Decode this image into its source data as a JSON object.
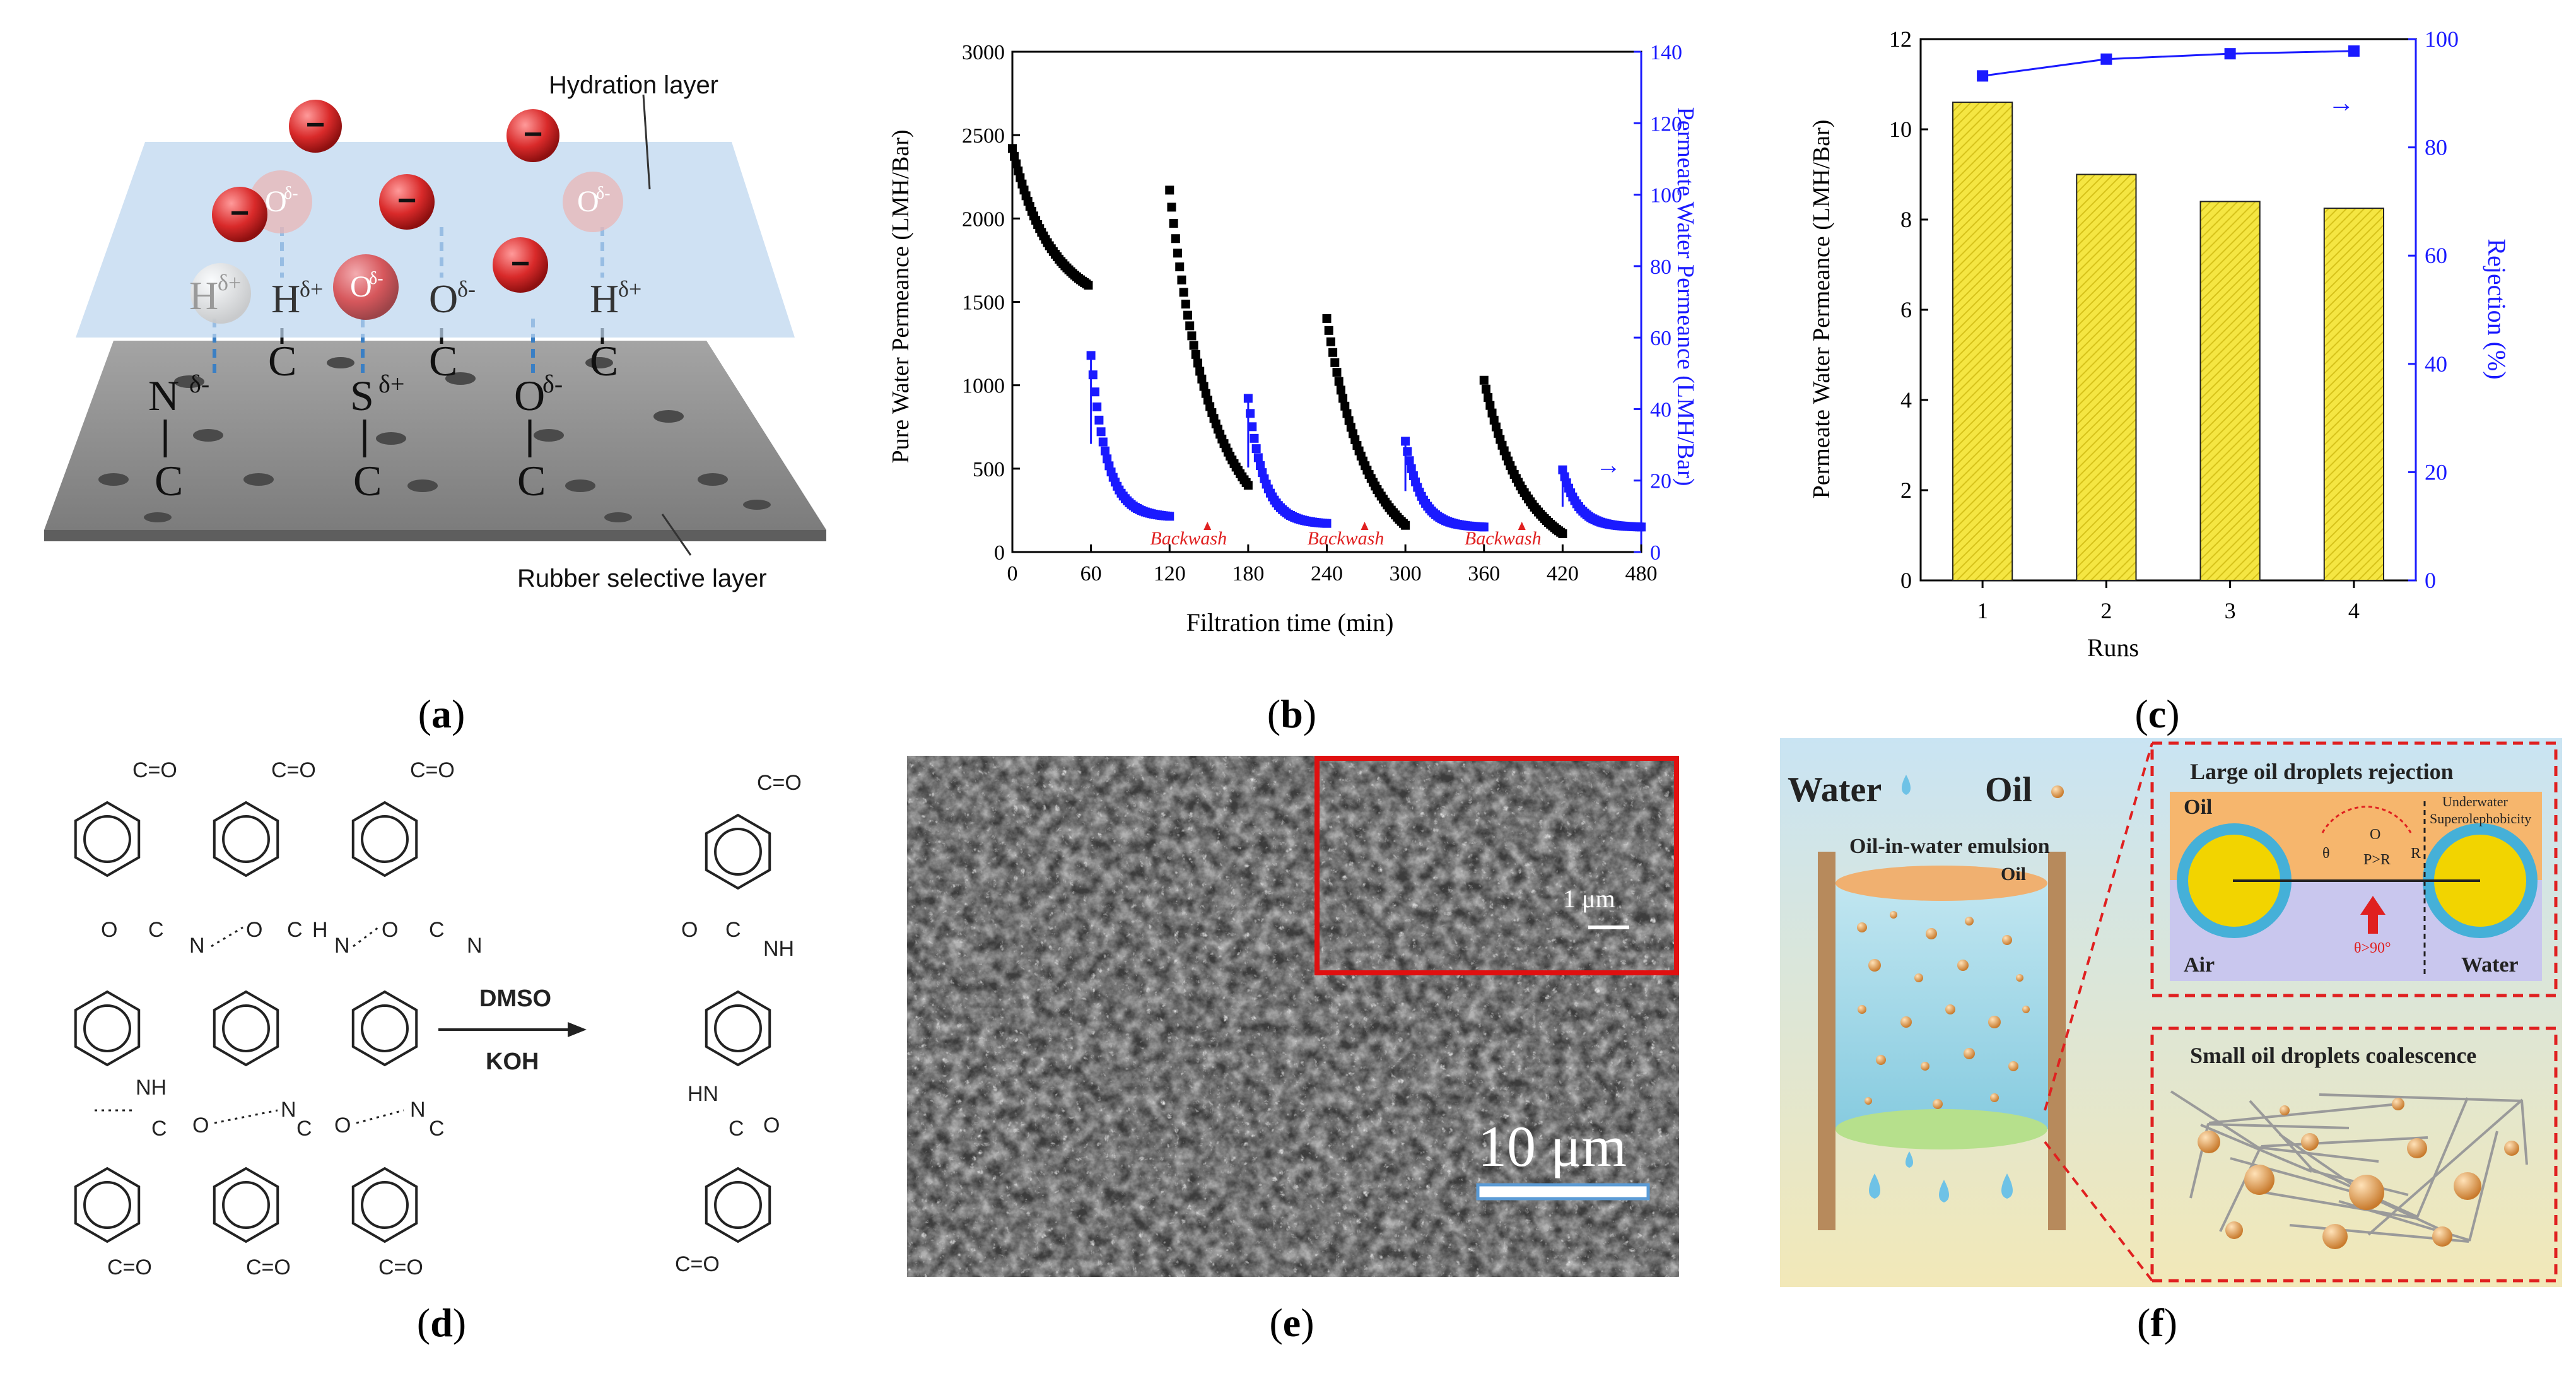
{
  "panel_a": {
    "hydration_label": "Hydration layer",
    "rubber_label": "Rubber selective layer",
    "charge_symbol": "−",
    "atoms": {
      "n": "N",
      "n_charge": "δ-",
      "s": "S",
      "s_charge": "δ+",
      "o": "O",
      "o_charge": "δ-",
      "c": "C",
      "h": "H",
      "h_charge": "δ+",
      "o_top": "O",
      "o_top_charge": "δ-",
      "odelta": "δ-",
      "hdelta": "δ+"
    }
  },
  "panel_d": {
    "reagent1": "DMSO",
    "reagent2": "KOH",
    "co": "C=O",
    "nh": "NH",
    "hn": "HN",
    "n": "N",
    "h": "H",
    "c": "C",
    "o": "O"
  },
  "panel_e": {
    "scale_main": "10 μm",
    "scale_inset": "1 μm"
  },
  "panel_f": {
    "water_label": "Water",
    "oil_label": "Oil",
    "emulsion_label": "Oil-in-water emulsion",
    "oil_top_label": "Oil",
    "box1_title": "Large oil droplets rejection",
    "box1_oil": "Oil",
    "box1_underwater": "Underwater",
    "box1_super": "Superolephobicity",
    "box1_air": "Air",
    "box1_water": "Water",
    "box1_theta": "θ>90°",
    "box1_o": "O",
    "box1_p": "P>R",
    "box1_r": "R",
    "box1_b": "θ",
    "box2_title": "Small oil droplets coalescence"
  },
  "captions": {
    "a": "a",
    "b": "b",
    "c": "c",
    "d": "d",
    "e": "e",
    "f": "f"
  },
  "colors": {
    "blue": "#1a1aff",
    "black": "#000000",
    "yellow": "#f5e642",
    "red": "#e02020"
  },
  "chart_data": [
    {
      "type": "scatter",
      "panel": "b",
      "xlabel": "Filtration time (min)",
      "ylabel": "Pure Water Permeance (LMH/Bar)",
      "y2label": "Permeate Water Permeance (LMH/Bar)",
      "xlim": [
        0,
        480
      ],
      "ylim": [
        0,
        3000
      ],
      "y2lim": [
        0,
        140
      ],
      "xticks": [
        "0",
        "60",
        "120",
        "180",
        "240",
        "300",
        "360",
        "420",
        "480"
      ],
      "yticks": [
        "0",
        "500",
        "1000",
        "1500",
        "2000",
        "2500",
        "3000"
      ],
      "y2ticks": [
        "0",
        "20",
        "40",
        "60",
        "80",
        "100",
        "120",
        "140"
      ],
      "annotations": [
        "Backwash",
        "Backwash",
        "Backwash"
      ],
      "annotation_x": [
        120,
        240,
        360
      ],
      "arrow_marker": "→",
      "series": [
        {
          "name": "Pure water permeance",
          "axis": "left",
          "color": "#000000",
          "segments": [
            {
              "t0": 0,
              "t1": 58,
              "start": 2420,
              "end": 1600
            },
            {
              "t0": 120,
              "t1": 180,
              "start": 2170,
              "end": 400
            },
            {
              "t0": 240,
              "t1": 300,
              "start": 1400,
              "end": 160
            },
            {
              "t0": 360,
              "t1": 420,
              "start": 1030,
              "end": 110
            }
          ]
        },
        {
          "name": "Permeate water permeance",
          "axis": "right",
          "color": "#1a1aff",
          "segments": [
            {
              "t0": 60,
              "t1": 120,
              "start": 55,
              "end": 10
            },
            {
              "t0": 180,
              "t1": 240,
              "start": 43,
              "end": 8
            },
            {
              "t0": 300,
              "t1": 360,
              "start": 31,
              "end": 7
            },
            {
              "t0": 420,
              "t1": 480,
              "start": 23,
              "end": 7
            }
          ]
        }
      ]
    },
    {
      "type": "bar",
      "panel": "c",
      "xlabel": "Runs",
      "ylabel": "Permeate Water Permeance (LMH/Bar)",
      "y2label": "Rejection (%)",
      "categories": [
        "1",
        "2",
        "3",
        "4"
      ],
      "values": [
        10.6,
        9.0,
        8.4,
        8.25
      ],
      "ylim": [
        0,
        12
      ],
      "y2lim": [
        0,
        100
      ],
      "yticks": [
        "0",
        "2",
        "4",
        "6",
        "8",
        "10",
        "12"
      ],
      "y2ticks": [
        "0",
        "20",
        "40",
        "60",
        "80",
        "100"
      ],
      "arrow_marker": "→",
      "series": [
        {
          "name": "Rejection",
          "axis": "right",
          "values": [
            93.2,
            96.3,
            97.3,
            97.8
          ]
        }
      ]
    }
  ]
}
